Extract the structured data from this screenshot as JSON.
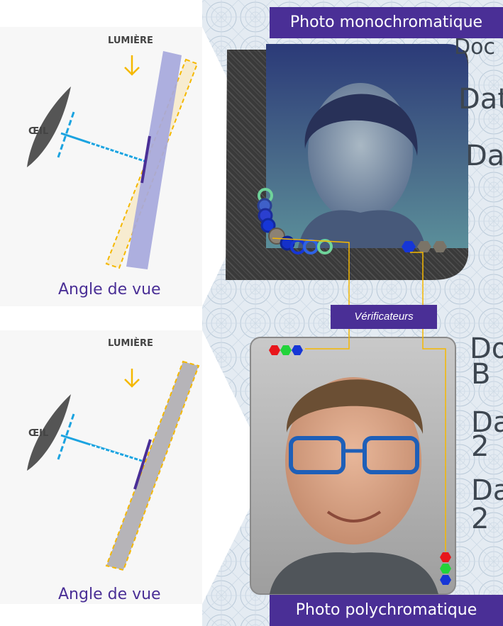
{
  "top_panel": {
    "title": "Photo monochromatique",
    "light_label": "LUMIÈRE",
    "eye_label": "ŒIL",
    "caption": "Angle de vue",
    "doc_fragments": [
      "Doc",
      "Dat",
      "Da"
    ]
  },
  "bottom_panel": {
    "title": "Photo polychromatique",
    "light_label": "LUMIÈRE",
    "eye_label": "ŒIL",
    "caption": "Angle de vue",
    "doc_fragments": [
      "Do",
      "B",
      "Da",
      "2",
      "Da",
      "2"
    ]
  },
  "verifiers_label": "Vérificateurs",
  "colors": {
    "accent_purple": "#4a2f96",
    "dashed_orange": "#f5b800",
    "eye_line_blue": "#1aa3e0",
    "verifier_red": "#e8161b",
    "verifier_green": "#22d33a",
    "verifier_blue": "#1636d6"
  }
}
